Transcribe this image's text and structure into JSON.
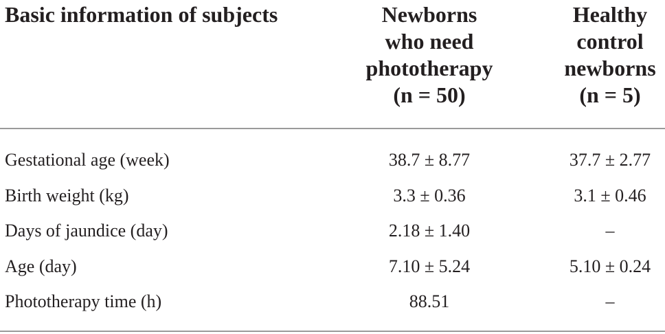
{
  "table": {
    "header": {
      "label": "Basic information of subjects",
      "columns": [
        [
          "Newborns",
          "who need",
          "phototherapy",
          "(n = 50)"
        ],
        [
          "Healthy",
          "control",
          "newborns",
          "(n = 5)"
        ]
      ]
    },
    "rows": [
      [
        "Gestational age (week)",
        "38.7 ± 8.77",
        "37.7 ± 2.77"
      ],
      [
        "Birth weight (kg)",
        "3.3 ± 0.36",
        "3.1 ± 0.46"
      ],
      [
        "Days of jaundice (day)",
        "2.18 ± 1.40",
        "–"
      ],
      [
        "Age (day)",
        "7.10 ± 5.24",
        "5.10 ± 0.24"
      ],
      [
        "Phototherapy time (h)",
        "88.51",
        "–"
      ]
    ]
  }
}
